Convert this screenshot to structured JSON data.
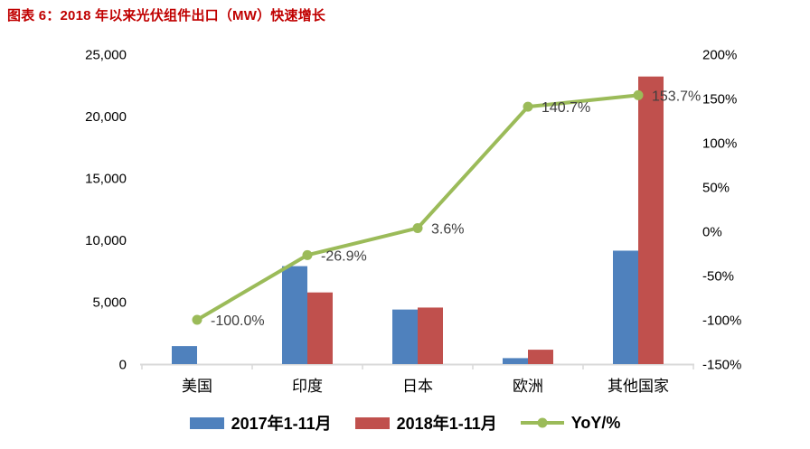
{
  "title": {
    "text": "图表 6：2018 年以来光伏组件出口（MW）快速增长",
    "color": "#C00000"
  },
  "chart_data": {
    "type": "bar",
    "subtype": "combo-bar-line-dual-axis",
    "categories": [
      "美国",
      "印度",
      "日本",
      "欧洲",
      "其他国家"
    ],
    "series": [
      {
        "name": "2017年1-11月",
        "type": "bar",
        "axis": "left",
        "color": "#4F81BD",
        "values": [
          1450,
          7900,
          4400,
          480,
          9150
        ]
      },
      {
        "name": "2018年1-11月",
        "type": "bar",
        "axis": "left",
        "color": "#C0504D",
        "values": [
          0,
          5780,
          4560,
          1160,
          23200
        ]
      },
      {
        "name": "YoY/%",
        "type": "line",
        "axis": "right",
        "color": "#9BBB59",
        "values": [
          -100.0,
          -26.9,
          3.6,
          140.7,
          153.7
        ],
        "point_labels": [
          "-100.0%",
          "-26.9%",
          "3.6%",
          "140.7%",
          "153.7%"
        ]
      }
    ],
    "left_axis": {
      "min": 0,
      "max": 25000,
      "step": 5000,
      "tick_labels": [
        "0",
        "5,000",
        "10,000",
        "15,000",
        "20,000",
        "25,000"
      ]
    },
    "right_axis": {
      "min": -150,
      "max": 200,
      "step": 50,
      "tick_labels": [
        "-150%",
        "-100%",
        "-50%",
        "0%",
        "50%",
        "100%",
        "150%",
        "200%"
      ]
    },
    "grid": false,
    "legend_position": "bottom",
    "tick_label_color": "#000000",
    "point_label_color": "#3F3F3F",
    "axis_line_color": "#D9D9D9"
  }
}
